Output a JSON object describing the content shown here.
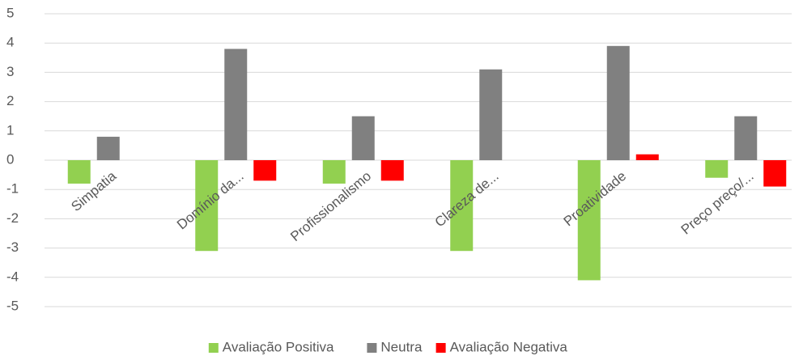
{
  "chart_data": {
    "type": "bar",
    "categories": [
      "Simpatia",
      "Domínio da...",
      "Profissionalismo",
      "Clareza de...",
      "Proatividade",
      "Preço preço/..."
    ],
    "series": [
      {
        "name": "Avaliação Positiva",
        "color": "#92d050",
        "values": [
          -0.8,
          -3.1,
          -0.8,
          -3.1,
          -4.1,
          -0.6
        ]
      },
      {
        "name": "Neutra",
        "color": "#808080",
        "values": [
          0.8,
          3.8,
          1.5,
          3.1,
          3.9,
          1.5
        ]
      },
      {
        "name": "Avaliação Negativa",
        "color": "#ff0000",
        "values": [
          0,
          -0.7,
          -0.7,
          0,
          0.2,
          -0.9
        ]
      }
    ],
    "ylim": [
      -5,
      5
    ],
    "yticks": [
      -5,
      -4,
      -3,
      -2,
      -1,
      0,
      1,
      2,
      3,
      4,
      5
    ],
    "grid": true,
    "legend": "bottom"
  }
}
